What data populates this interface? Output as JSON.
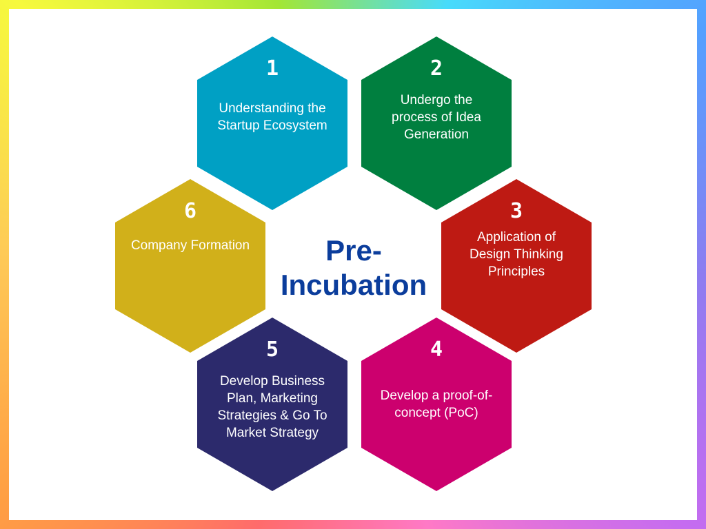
{
  "title": "Pre-\nIncubation",
  "colors": {
    "step_1": "#00a0c4",
    "step_2": "#007f3f",
    "step_3": "#be1a13",
    "step_4": "#cc006e",
    "step_5": "#2c2a6c",
    "step_6": "#d1b01a",
    "title": "#0b3d9c"
  },
  "steps": [
    {
      "number": "1",
      "label": "Understanding the Startup Ecosystem"
    },
    {
      "number": "2",
      "label": "Undergo the process of Idea Generation"
    },
    {
      "number": "3",
      "label": "Application of Design Thinking Principles"
    },
    {
      "number": "4",
      "label": "Develop a proof-of-concept (PoC)"
    },
    {
      "number": "5",
      "label": "Develop Business Plan, Marketing Strategies & Go To Market Strategy"
    },
    {
      "number": "6",
      "label": "Company Formation"
    }
  ]
}
